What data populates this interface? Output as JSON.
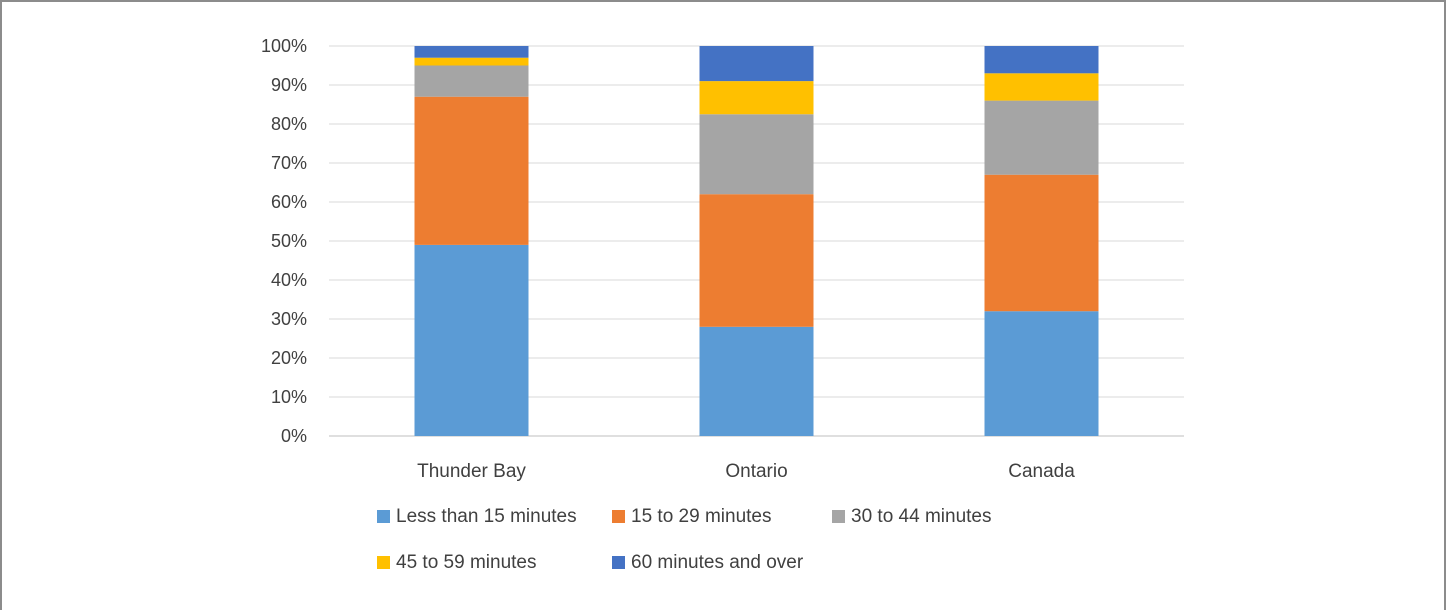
{
  "chart_data": {
    "type": "bar",
    "stacked": true,
    "percent": true,
    "categories": [
      "Thunder Bay",
      "Ontario",
      "Canada"
    ],
    "series": [
      {
        "name": "Less than 15 minutes",
        "color": "#5B9BD5",
        "values": [
          49,
          28,
          32
        ]
      },
      {
        "name": "15 to 29 minutes",
        "color": "#ED7D31",
        "values": [
          38,
          34,
          35
        ]
      },
      {
        "name": "30 to 44 minutes",
        "color": "#A5A5A5",
        "values": [
          8,
          20.5,
          19
        ]
      },
      {
        "name": "45 to 59 minutes",
        "color": "#FFC000",
        "values": [
          2,
          8.5,
          7
        ]
      },
      {
        "name": "60 minutes and over",
        "color": "#4472C4",
        "values": [
          3,
          9,
          7
        ]
      }
    ],
    "y_ticks": [
      "0%",
      "10%",
      "20%",
      "30%",
      "40%",
      "50%",
      "60%",
      "70%",
      "80%",
      "90%",
      "100%"
    ],
    "ylim": [
      0,
      100
    ],
    "grid": true,
    "legend_position": "bottom"
  }
}
